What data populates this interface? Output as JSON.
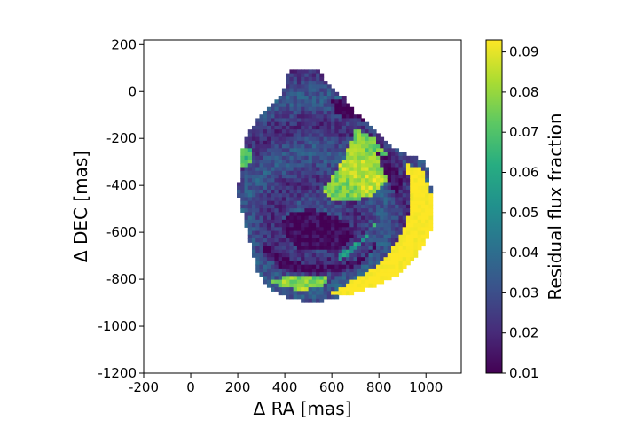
{
  "chart_data": {
    "type": "heatmap",
    "title": "",
    "xlabel": "Δ RA [mas]",
    "ylabel": "Δ DEC [mas]",
    "xlim": [
      -200,
      1150
    ],
    "ylim": [
      -1200,
      220
    ],
    "x_ticks": [
      -200,
      0,
      200,
      400,
      600,
      800,
      1000
    ],
    "y_ticks": [
      200,
      0,
      -200,
      -400,
      -600,
      -800,
      -1000,
      -1200
    ],
    "grid": false,
    "colorbar": {
      "label": "Residual flux fraction",
      "vmin": 0.01,
      "vmax": 0.093,
      "ticks": [
        0.01,
        0.02,
        0.03,
        0.04,
        0.05,
        0.06,
        0.07,
        0.08,
        0.09
      ],
      "tick_labels": [
        "0.01",
        "0.02",
        "0.03",
        "0.04",
        "0.05",
        "0.06",
        "0.07",
        "0.08",
        "0.09"
      ],
      "colormap": "viridis",
      "colors": [
        "#440154",
        "#472c7a",
        "#3b518b",
        "#2c718e",
        "#21908d",
        "#27ad81",
        "#5cc863",
        "#aadc32",
        "#fde725"
      ]
    },
    "cell_size_mas": 16,
    "regions": [
      {
        "name": "background",
        "shape": "polygon",
        "value": 0.027,
        "points": [
          [
            420,
            100
          ],
          [
            540,
            100
          ],
          [
            560,
            80
          ],
          [
            580,
            30
          ],
          [
            660,
            -30
          ],
          [
            700,
            -90
          ],
          [
            780,
            -160
          ],
          [
            860,
            -240
          ],
          [
            1000,
            -300
          ],
          [
            1030,
            -450
          ],
          [
            1020,
            -600
          ],
          [
            960,
            -700
          ],
          [
            880,
            -780
          ],
          [
            780,
            -830
          ],
          [
            650,
            -870
          ],
          [
            520,
            -900
          ],
          [
            420,
            -880
          ],
          [
            330,
            -840
          ],
          [
            280,
            -760
          ],
          [
            260,
            -680
          ],
          [
            240,
            -600
          ],
          [
            220,
            -520
          ],
          [
            200,
            -440
          ],
          [
            210,
            -300
          ],
          [
            230,
            -200
          ],
          [
            280,
            -120
          ],
          [
            340,
            -60
          ],
          [
            390,
            0
          ],
          [
            410,
            70
          ]
        ]
      },
      {
        "name": "yellow-rim",
        "shape": "polygon",
        "value": 0.095,
        "points": [
          [
            910,
            -310
          ],
          [
            980,
            -320
          ],
          [
            1030,
            -460
          ],
          [
            1020,
            -600
          ],
          [
            960,
            -700
          ],
          [
            880,
            -780
          ],
          [
            780,
            -830
          ],
          [
            680,
            -860
          ],
          [
            600,
            -860
          ],
          [
            700,
            -800
          ],
          [
            800,
            -740
          ],
          [
            880,
            -640
          ],
          [
            930,
            -520
          ],
          [
            940,
            -400
          ]
        ]
      },
      {
        "name": "bright-upper-arc",
        "shape": "polygon",
        "value": 0.08,
        "points": [
          [
            700,
            -160
          ],
          [
            780,
            -200
          ],
          [
            850,
            -290
          ],
          [
            840,
            -380
          ],
          [
            780,
            -440
          ],
          [
            700,
            -470
          ],
          [
            620,
            -470
          ],
          [
            560,
            -430
          ],
          [
            600,
            -360
          ],
          [
            650,
            -290
          ],
          [
            680,
            -220
          ]
        ]
      },
      {
        "name": "bright-lower-arc",
        "shape": "polygon",
        "value": 0.075,
        "points": [
          [
            300,
            -780
          ],
          [
            360,
            -820
          ],
          [
            460,
            -850
          ],
          [
            560,
            -830
          ],
          [
            600,
            -800
          ],
          [
            520,
            -780
          ],
          [
            420,
            -790
          ],
          [
            340,
            -800
          ]
        ]
      },
      {
        "name": "bright-lower-ring",
        "shape": "polygon",
        "value": 0.06,
        "points": [
          [
            620,
            -700
          ],
          [
            700,
            -650
          ],
          [
            760,
            -600
          ],
          [
            800,
            -520
          ],
          [
            780,
            -580
          ],
          [
            720,
            -660
          ],
          [
            640,
            -720
          ]
        ]
      },
      {
        "name": "dark-center",
        "shape": "polygon",
        "value": 0.011,
        "points": [
          [
            420,
            -520
          ],
          [
            520,
            -500
          ],
          [
            640,
            -540
          ],
          [
            700,
            -600
          ],
          [
            660,
            -660
          ],
          [
            560,
            -680
          ],
          [
            460,
            -670
          ],
          [
            400,
            -620
          ],
          [
            390,
            -560
          ]
        ]
      },
      {
        "name": "dark-arc",
        "shape": "polygon",
        "value": 0.012,
        "points": [
          [
            300,
            -640
          ],
          [
            380,
            -700
          ],
          [
            500,
            -740
          ],
          [
            640,
            -740
          ],
          [
            740,
            -700
          ],
          [
            800,
            -620
          ],
          [
            780,
            -680
          ],
          [
            680,
            -760
          ],
          [
            540,
            -780
          ],
          [
            400,
            -760
          ],
          [
            320,
            -710
          ]
        ]
      },
      {
        "name": "dark-upper-notch",
        "shape": "polygon",
        "value": 0.011,
        "points": [
          [
            600,
            -40
          ],
          [
            660,
            -20
          ],
          [
            720,
            -80
          ],
          [
            760,
            -140
          ],
          [
            720,
            -120
          ],
          [
            660,
            -110
          ],
          [
            620,
            -90
          ]
        ]
      },
      {
        "name": "dark-right-band",
        "shape": "polygon",
        "value": 0.012,
        "points": [
          [
            790,
            -260
          ],
          [
            860,
            -300
          ],
          [
            900,
            -360
          ],
          [
            880,
            -460
          ],
          [
            860,
            -420
          ],
          [
            830,
            -360
          ]
        ]
      },
      {
        "name": "bright-spot",
        "shape": "circle",
        "value": 0.072,
        "center": [
          230,
          -280
        ],
        "radius": 38
      }
    ]
  }
}
